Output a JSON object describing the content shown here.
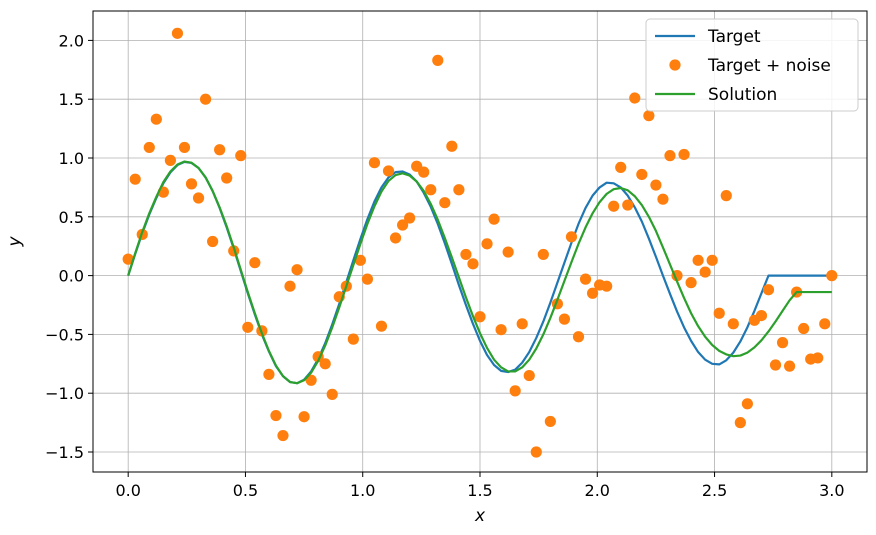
{
  "chart_data": {
    "type": "line",
    "title": "",
    "xlabel": "x",
    "ylabel": "y",
    "xlim": [
      -0.15,
      3.15
    ],
    "ylim": [
      -1.67,
      2.25
    ],
    "xticks": [
      0.0,
      0.5,
      1.0,
      1.5,
      2.0,
      2.5,
      3.0
    ],
    "xtick_labels": [
      "0.0",
      "0.5",
      "1.0",
      "1.5",
      "2.0",
      "2.5",
      "3.0"
    ],
    "yticks": [
      -1.5,
      -1.0,
      -0.5,
      0.0,
      0.5,
      1.0,
      1.5,
      2.0
    ],
    "ytick_labels": [
      "−1.5",
      "−1.0",
      "−0.5",
      "0.0",
      "0.5",
      "1.0",
      "1.5",
      "2.0"
    ],
    "grid": true,
    "legend_position": "top-right",
    "series": [
      {
        "name": "Target",
        "kind": "line",
        "color": "#1f77b4",
        "x": [
          0.0,
          0.03,
          0.06,
          0.09,
          0.12,
          0.15,
          0.18,
          0.21,
          0.24,
          0.27,
          0.3,
          0.33,
          0.36,
          0.39,
          0.42,
          0.45,
          0.48,
          0.51,
          0.54,
          0.57,
          0.6,
          0.63,
          0.66,
          0.69,
          0.72,
          0.75,
          0.78,
          0.81,
          0.84,
          0.87,
          0.9,
          0.93,
          0.96,
          0.99,
          1.02,
          1.05,
          1.08,
          1.11,
          1.14,
          1.17,
          1.2,
          1.23,
          1.26,
          1.29,
          1.32,
          1.35,
          1.38,
          1.41,
          1.44,
          1.47,
          1.5,
          1.53,
          1.56,
          1.59,
          1.62,
          1.65,
          1.68,
          1.71,
          1.74,
          1.77,
          1.8,
          1.83,
          1.86,
          1.89,
          1.92,
          1.95,
          1.98,
          2.01,
          2.04,
          2.07,
          2.1,
          2.13,
          2.16,
          2.19,
          2.22,
          2.25,
          2.28,
          2.31,
          2.34,
          2.37,
          2.4,
          2.43,
          2.46,
          2.49,
          2.52,
          2.55,
          2.58,
          2.61,
          2.64,
          2.67,
          2.7,
          2.73,
          2.76,
          2.79,
          2.82,
          2.85,
          2.88,
          2.91,
          2.94,
          2.97,
          3.0
        ],
        "y": [
          0.0,
          0.185,
          0.36,
          0.52,
          0.66,
          0.785,
          0.878,
          0.94,
          0.967,
          0.958,
          0.915,
          0.835,
          0.72,
          0.575,
          0.41,
          0.23,
          0.04,
          -0.15,
          -0.33,
          -0.5,
          -0.645,
          -0.77,
          -0.855,
          -0.905,
          -0.915,
          -0.885,
          -0.815,
          -0.71,
          -0.575,
          -0.415,
          -0.24,
          -0.055,
          0.13,
          0.31,
          0.48,
          0.63,
          0.75,
          0.835,
          0.88,
          0.885,
          0.86,
          0.8,
          0.705,
          0.585,
          0.44,
          0.275,
          0.1,
          -0.08,
          -0.25,
          -0.41,
          -0.555,
          -0.675,
          -0.76,
          -0.81,
          -0.82,
          -0.8,
          -0.74,
          -0.65,
          -0.53,
          -0.39,
          -0.23,
          -0.06,
          0.11,
          0.28,
          0.44,
          0.575,
          0.68,
          0.75,
          0.79,
          0.785,
          0.75,
          0.68,
          0.58,
          0.46,
          0.315,
          0.16,
          0.0,
          -0.155,
          -0.305,
          -0.44,
          -0.555,
          -0.65,
          -0.715,
          -0.75,
          -0.755,
          -0.72,
          -0.655,
          -0.56,
          -0.44,
          -0.3,
          -0.15,
          0.0,
          0.0,
          0.0,
          0.0,
          0.0,
          0.0,
          0.0,
          0.0,
          0.0,
          0.0
        ]
      },
      {
        "name": "Target + noise",
        "kind": "scatter",
        "color": "#ff7f0e",
        "x": [
          0.0,
          0.03,
          0.06,
          0.09,
          0.12,
          0.15,
          0.18,
          0.21,
          0.24,
          0.27,
          0.3,
          0.33,
          0.36,
          0.39,
          0.42,
          0.45,
          0.48,
          0.51,
          0.54,
          0.57,
          0.6,
          0.63,
          0.66,
          0.69,
          0.72,
          0.75,
          0.78,
          0.81,
          0.84,
          0.87,
          0.9,
          0.93,
          0.96,
          0.99,
          1.02,
          1.05,
          1.08,
          1.11,
          1.14,
          1.17,
          1.2,
          1.23,
          1.26,
          1.29,
          1.32,
          1.35,
          1.38,
          1.41,
          1.44,
          1.47,
          1.5,
          1.53,
          1.56,
          1.59,
          1.62,
          1.65,
          1.68,
          1.71,
          1.74,
          1.77,
          1.8,
          1.83,
          1.86,
          1.89,
          1.92,
          1.95,
          1.98,
          2.01,
          2.04,
          2.07,
          2.1,
          2.13,
          2.16,
          2.19,
          2.22,
          2.25,
          2.28,
          2.31,
          2.34,
          2.37,
          2.4,
          2.43,
          2.46,
          2.49,
          2.52,
          2.55,
          2.58,
          2.61,
          2.64,
          2.67,
          2.7,
          2.73,
          2.76,
          2.79,
          2.82,
          2.85,
          2.88,
          2.91,
          2.94,
          2.97,
          3.0
        ],
        "y": [
          0.14,
          0.82,
          0.35,
          1.09,
          1.33,
          0.71,
          0.98,
          2.06,
          1.09,
          0.78,
          0.66,
          1.5,
          0.29,
          1.07,
          0.83,
          0.21,
          1.02,
          -0.44,
          0.11,
          -0.47,
          -0.84,
          -1.19,
          -1.36,
          -0.09,
          0.05,
          -1.2,
          -0.89,
          -0.69,
          -0.75,
          -1.01,
          -0.18,
          -0.09,
          -0.54,
          0.13,
          -0.03,
          0.96,
          -0.43,
          0.89,
          0.32,
          0.43,
          0.49,
          0.93,
          0.88,
          0.73,
          1.83,
          0.62,
          1.1,
          0.73,
          0.18,
          0.1,
          -0.35,
          0.27,
          0.48,
          -0.46,
          0.2,
          -0.98,
          -0.41,
          -0.85,
          -1.5,
          0.18,
          -1.24,
          -0.24,
          -0.37,
          0.33,
          -0.52,
          -0.03,
          -0.15,
          -0.08,
          -0.09,
          0.59,
          0.92,
          0.6,
          1.51,
          0.86,
          1.36,
          0.77,
          0.65,
          1.02,
          0.0,
          1.03,
          -0.06,
          0.13,
          0.03,
          0.13,
          -0.32,
          0.68,
          -0.41,
          -1.25,
          -1.09,
          -0.38,
          -0.34,
          -0.12,
          -0.76,
          -0.57,
          -0.77,
          -0.14,
          -0.45,
          -0.71,
          -0.7,
          -0.41,
          0.0
        ]
      },
      {
        "name": "Solution",
        "kind": "line",
        "color": "#2ca02c",
        "x": [
          0.0,
          0.03,
          0.06,
          0.09,
          0.12,
          0.15,
          0.18,
          0.21,
          0.24,
          0.27,
          0.3,
          0.33,
          0.36,
          0.39,
          0.42,
          0.45,
          0.48,
          0.51,
          0.54,
          0.57,
          0.6,
          0.63,
          0.66,
          0.69,
          0.72,
          0.75,
          0.78,
          0.81,
          0.84,
          0.87,
          0.9,
          0.93,
          0.96,
          0.99,
          1.02,
          1.05,
          1.08,
          1.11,
          1.14,
          1.17,
          1.2,
          1.23,
          1.26,
          1.29,
          1.32,
          1.35,
          1.38,
          1.41,
          1.44,
          1.47,
          1.5,
          1.53,
          1.56,
          1.59,
          1.62,
          1.65,
          1.68,
          1.71,
          1.74,
          1.77,
          1.8,
          1.83,
          1.86,
          1.89,
          1.92,
          1.95,
          1.98,
          2.01,
          2.04,
          2.07,
          2.1,
          2.13,
          2.16,
          2.19,
          2.22,
          2.25,
          2.28,
          2.31,
          2.34,
          2.37,
          2.4,
          2.43,
          2.46,
          2.49,
          2.52,
          2.55,
          2.58,
          2.61,
          2.64,
          2.67,
          2.7,
          2.73,
          2.76,
          2.79,
          2.82,
          2.85,
          2.88,
          2.91,
          2.94,
          2.97,
          3.0
        ],
        "y": [
          0.0,
          0.19,
          0.37,
          0.53,
          0.67,
          0.795,
          0.885,
          0.945,
          0.97,
          0.96,
          0.915,
          0.835,
          0.72,
          0.58,
          0.42,
          0.24,
          0.05,
          -0.14,
          -0.32,
          -0.49,
          -0.64,
          -0.765,
          -0.855,
          -0.905,
          -0.915,
          -0.89,
          -0.825,
          -0.725,
          -0.595,
          -0.44,
          -0.27,
          -0.09,
          0.09,
          0.27,
          0.44,
          0.59,
          0.715,
          0.805,
          0.855,
          0.87,
          0.85,
          0.8,
          0.72,
          0.61,
          0.475,
          0.32,
          0.155,
          -0.015,
          -0.185,
          -0.345,
          -0.49,
          -0.615,
          -0.715,
          -0.78,
          -0.815,
          -0.815,
          -0.78,
          -0.715,
          -0.62,
          -0.5,
          -0.36,
          -0.205,
          -0.045,
          0.115,
          0.27,
          0.41,
          0.53,
          0.625,
          0.695,
          0.735,
          0.745,
          0.725,
          0.675,
          0.6,
          0.5,
          0.38,
          0.24,
          0.095,
          -0.05,
          -0.19,
          -0.32,
          -0.43,
          -0.52,
          -0.59,
          -0.64,
          -0.67,
          -0.685,
          -0.68,
          -0.655,
          -0.61,
          -0.55,
          -0.475,
          -0.39,
          -0.3,
          -0.21,
          -0.14,
          -0.14,
          -0.14,
          -0.14,
          -0.14,
          -0.14
        ]
      }
    ]
  }
}
